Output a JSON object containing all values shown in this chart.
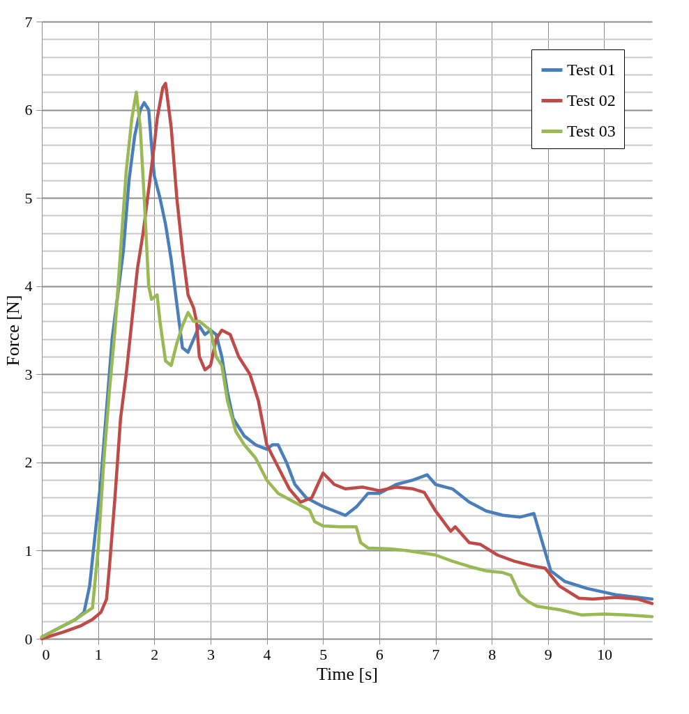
{
  "chart_data": {
    "type": "line",
    "xlabel": "Time [s]",
    "ylabel": "Force [N]",
    "xlim": [
      0,
      10.85
    ],
    "ylim": [
      0,
      7
    ],
    "xticks": [
      0,
      1,
      2,
      3,
      4,
      5,
      6,
      7,
      8,
      9,
      10
    ],
    "yticks": [
      0,
      {
        "value": 0.2,
        "label": null
      },
      {
        "value": 0.4,
        "label": null
      },
      {
        "value": 0.6,
        "label": null
      },
      {
        "value": 0.8,
        "label": null
      },
      1,
      {
        "value": 1.2,
        "label": null
      },
      {
        "value": 1.4,
        "label": null
      },
      {
        "value": 1.6,
        "label": null
      },
      {
        "value": 1.8,
        "label": null
      },
      2,
      {
        "value": 2.2,
        "label": null
      },
      {
        "value": 2.4,
        "label": null
      },
      {
        "value": 2.6,
        "label": null
      },
      {
        "value": 2.8,
        "label": null
      },
      3,
      {
        "value": 3.2,
        "label": null
      },
      {
        "value": 3.4,
        "label": null
      },
      {
        "value": 3.6,
        "label": null
      },
      {
        "value": 3.8,
        "label": null
      },
      4,
      {
        "value": 4.2,
        "label": null
      },
      {
        "value": 4.4,
        "label": null
      },
      {
        "value": 4.6,
        "label": null
      },
      {
        "value": 4.8,
        "label": null
      },
      5,
      {
        "value": 5.2,
        "label": null
      },
      {
        "value": 5.4,
        "label": null
      },
      {
        "value": 5.6,
        "label": null
      },
      {
        "value": 5.8,
        "label": null
      },
      6,
      {
        "value": 6.2,
        "label": null
      },
      {
        "value": 6.4,
        "label": null
      },
      {
        "value": 6.6,
        "label": null
      },
      {
        "value": 6.8,
        "label": null
      },
      7
    ],
    "grid": true,
    "legend": "top right",
    "marker": "none",
    "line_style": "solid",
    "series": [
      {
        "name": "Test 01",
        "color": "#4a7ebb",
        "x": [
          0,
          0.3,
          0.6,
          0.75,
          0.85,
          0.95,
          1.05,
          1.15,
          1.25,
          1.35,
          1.45,
          1.55,
          1.65,
          1.75,
          1.82,
          1.9,
          1.95,
          2.0,
          2.1,
          2.2,
          2.3,
          2.4,
          2.5,
          2.6,
          2.7,
          2.8,
          2.9,
          3.0,
          3.1,
          3.2,
          3.3,
          3.4,
          3.6,
          3.8,
          4.0,
          4.1,
          4.2,
          4.35,
          4.5,
          4.7,
          5.0,
          5.2,
          5.4,
          5.6,
          5.8,
          6.0,
          6.3,
          6.6,
          6.85,
          7.0,
          7.3,
          7.6,
          7.9,
          8.2,
          8.5,
          8.75,
          8.85,
          9.05,
          9.3,
          9.7,
          10.2,
          10.85
        ],
        "values": [
          0.02,
          0.12,
          0.22,
          0.3,
          0.6,
          1.2,
          1.8,
          2.6,
          3.4,
          3.9,
          4.4,
          5.2,
          5.7,
          6.0,
          6.08,
          6.0,
          5.6,
          5.25,
          5.0,
          4.7,
          4.3,
          3.8,
          3.3,
          3.25,
          3.4,
          3.55,
          3.45,
          3.5,
          3.45,
          3.2,
          2.8,
          2.5,
          2.3,
          2.2,
          2.15,
          2.2,
          2.2,
          2.0,
          1.75,
          1.6,
          1.5,
          1.45,
          1.4,
          1.5,
          1.65,
          1.65,
          1.75,
          1.8,
          1.86,
          1.75,
          1.7,
          1.55,
          1.45,
          1.4,
          1.38,
          1.42,
          1.2,
          0.77,
          0.65,
          0.57,
          0.5,
          0.45
        ]
      },
      {
        "name": "Test 02",
        "color": "#be4b48",
        "x": [
          0,
          0.4,
          0.7,
          0.9,
          1.05,
          1.15,
          1.2,
          1.3,
          1.4,
          1.5,
          1.6,
          1.7,
          1.8,
          1.9,
          2.0,
          2.05,
          2.15,
          2.2,
          2.3,
          2.4,
          2.5,
          2.6,
          2.7,
          2.75,
          2.8,
          2.9,
          3.0,
          3.1,
          3.2,
          3.35,
          3.5,
          3.7,
          3.85,
          4.0,
          4.2,
          4.4,
          4.6,
          4.8,
          5.0,
          5.2,
          5.4,
          5.7,
          6.0,
          6.3,
          6.6,
          6.8,
          7.0,
          7.27,
          7.35,
          7.6,
          7.8,
          8.1,
          8.4,
          8.7,
          8.95,
          9.2,
          9.55,
          9.8,
          10.2,
          10.6,
          10.85
        ],
        "values": [
          0.0,
          0.08,
          0.15,
          0.22,
          0.3,
          0.45,
          0.8,
          1.6,
          2.5,
          3.0,
          3.6,
          4.2,
          4.6,
          5.1,
          5.6,
          5.9,
          6.25,
          6.3,
          5.8,
          5.0,
          4.4,
          3.9,
          3.75,
          3.6,
          3.2,
          3.05,
          3.1,
          3.4,
          3.5,
          3.45,
          3.2,
          3.0,
          2.7,
          2.2,
          1.95,
          1.7,
          1.55,
          1.6,
          1.88,
          1.75,
          1.7,
          1.72,
          1.68,
          1.72,
          1.7,
          1.66,
          1.45,
          1.22,
          1.27,
          1.09,
          1.07,
          0.95,
          0.88,
          0.83,
          0.8,
          0.6,
          0.46,
          0.45,
          0.47,
          0.45,
          0.4
        ]
      },
      {
        "name": "Test 03",
        "color": "#98b954",
        "x": [
          0,
          0.3,
          0.6,
          0.9,
          1.0,
          1.1,
          1.2,
          1.3,
          1.4,
          1.5,
          1.6,
          1.68,
          1.75,
          1.82,
          1.9,
          1.95,
          2.05,
          2.1,
          2.2,
          2.3,
          2.4,
          2.5,
          2.6,
          2.7,
          2.8,
          3.0,
          3.1,
          3.2,
          3.3,
          3.45,
          3.6,
          3.8,
          4.0,
          4.2,
          4.4,
          4.76,
          4.85,
          5.0,
          5.3,
          5.59,
          5.67,
          5.8,
          6.2,
          6.5,
          6.8,
          7.0,
          7.3,
          7.6,
          7.9,
          8.2,
          8.34,
          8.5,
          8.65,
          8.8,
          9.2,
          9.6,
          10.0,
          10.4,
          10.85
        ],
        "values": [
          0.02,
          0.12,
          0.22,
          0.35,
          1.0,
          2.0,
          2.8,
          3.5,
          4.4,
          5.3,
          5.9,
          6.2,
          5.8,
          5.0,
          4.0,
          3.85,
          3.9,
          3.6,
          3.15,
          3.1,
          3.35,
          3.55,
          3.7,
          3.6,
          3.6,
          3.5,
          3.2,
          3.1,
          2.7,
          2.35,
          2.2,
          2.05,
          1.8,
          1.65,
          1.58,
          1.46,
          1.33,
          1.28,
          1.27,
          1.27,
          1.09,
          1.03,
          1.02,
          1.0,
          0.97,
          0.95,
          0.88,
          0.82,
          0.77,
          0.75,
          0.72,
          0.5,
          0.42,
          0.37,
          0.33,
          0.27,
          0.28,
          0.27,
          0.25
        ]
      }
    ]
  }
}
